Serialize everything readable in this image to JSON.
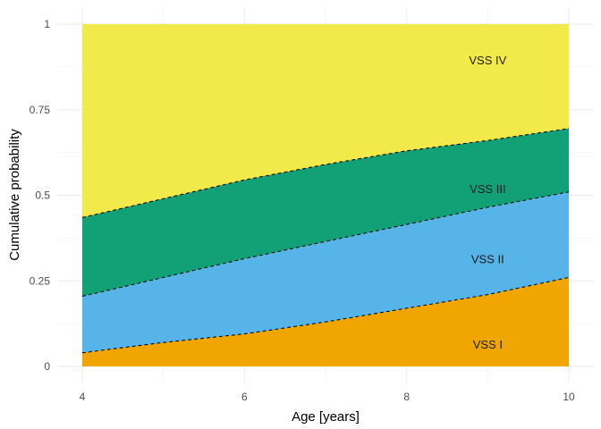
{
  "chart_data": {
    "type": "area",
    "xlabel": "Age [years]",
    "ylabel": "Cumulative probability",
    "xlim": [
      4,
      10
    ],
    "ylim": [
      0,
      1
    ],
    "x_ticks": [
      4,
      6,
      8,
      10
    ],
    "x_tick_labels": [
      "4",
      "6",
      "8",
      "10"
    ],
    "y_ticks": [
      0,
      0.25,
      0.5,
      0.75,
      1
    ],
    "y_tick_labels": [
      "0",
      "0.25",
      "0.5",
      "0.75",
      "1"
    ],
    "grid": true,
    "legend": "none",
    "x": [
      4,
      5,
      6,
      7,
      8,
      9,
      10
    ],
    "boundaries": [
      {
        "upper_of": "VSS I",
        "values": [
          0.04,
          0.07,
          0.095,
          0.13,
          0.17,
          0.21,
          0.26
        ]
      },
      {
        "upper_of": "VSS II",
        "values": [
          0.205,
          0.26,
          0.315,
          0.365,
          0.415,
          0.465,
          0.51
        ]
      },
      {
        "upper_of": "VSS III",
        "values": [
          0.435,
          0.49,
          0.545,
          0.59,
          0.63,
          0.66,
          0.695
        ]
      }
    ],
    "series": [
      {
        "name": "VSS I",
        "color": "#f0a500"
      },
      {
        "name": "VSS II",
        "color": "#56b4e9"
      },
      {
        "name": "VSS III",
        "color": "#12a077"
      },
      {
        "name": "VSS IV",
        "color": "#f2e94a"
      }
    ],
    "region_labels": [
      {
        "text": "VSS I",
        "x": 9.0,
        "y": 0.065
      },
      {
        "text": "VSS II",
        "x": 9.0,
        "y": 0.315
      },
      {
        "text": "VSS III",
        "x": 9.0,
        "y": 0.52
      },
      {
        "text": "VSS IV",
        "x": 9.0,
        "y": 0.895
      }
    ]
  }
}
